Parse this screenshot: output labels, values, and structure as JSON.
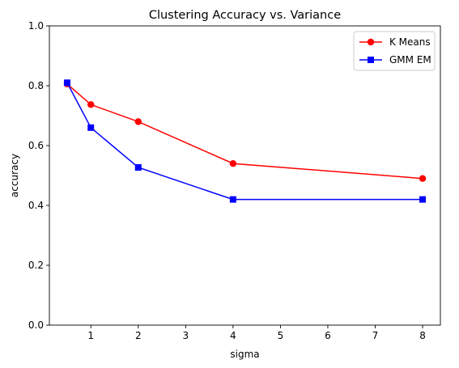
{
  "chart_data": {
    "type": "line",
    "title": "Clustering Accuracy vs. Variance",
    "xlabel": "sigma",
    "ylabel": "accuracy",
    "xlim": [
      0.125,
      8.375
    ],
    "ylim": [
      0.0,
      1.0
    ],
    "xticks": [
      1,
      2,
      3,
      4,
      5,
      6,
      7,
      8
    ],
    "yticks": [
      0.0,
      0.2,
      0.4,
      0.6,
      0.8,
      1.0
    ],
    "ytick_labels": [
      "0.0",
      "0.2",
      "0.4",
      "0.6",
      "0.8",
      "1.0"
    ],
    "x": [
      0.5,
      1,
      2,
      4,
      8
    ],
    "series": [
      {
        "name": "K Means",
        "values": [
          0.806,
          0.737,
          0.68,
          0.54,
          0.49
        ],
        "color": "#ff0000",
        "marker": "circle"
      },
      {
        "name": "GMM EM",
        "values": [
          0.81,
          0.66,
          0.527,
          0.42,
          0.42
        ],
        "color": "#0000ff",
        "marker": "square"
      }
    ],
    "legend": "top-right",
    "grid": false
  }
}
